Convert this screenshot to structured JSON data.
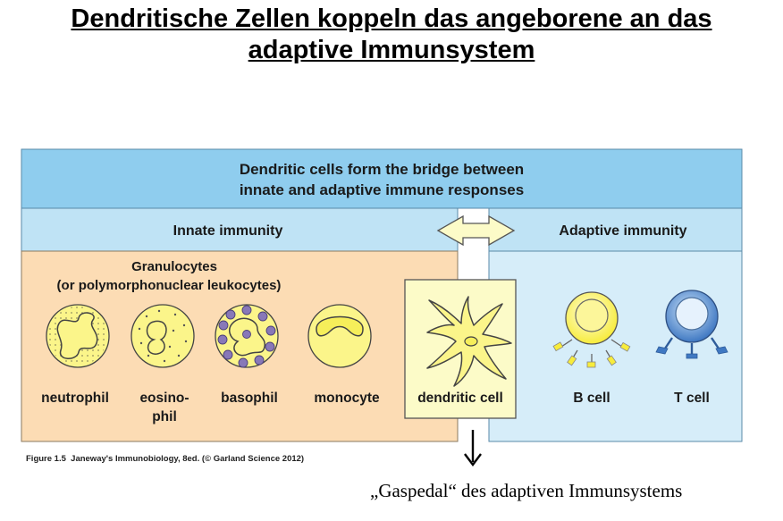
{
  "slide": {
    "title_line1": "Dendritische Zellen koppeln das angeborene an das",
    "title_line2": "adaptive Immunsystem"
  },
  "figure": {
    "header_line1": "Dendritic cells form the bridge between",
    "header_line2": "innate and adaptive immune responses",
    "innate_label": "Innate immunity",
    "adaptive_label": "Adaptive immunity",
    "granulocytes_line1": "Granulocytes",
    "granulocytes_line2": "(or polymorphonuclear leukocytes)",
    "cells": {
      "neutrophil": "neutrophil",
      "eosinophil_line1": "eosino-",
      "eosinophil_line2": "phil",
      "basophil": "basophil",
      "monocyte": "monocyte",
      "dendritic": "dendritic cell",
      "bcell": "B cell",
      "tcell": "T cell"
    },
    "colors": {
      "header_blue": "#8fcdee",
      "subheader_blue": "#bfe3f5",
      "innate_bg": "#fcdcb4",
      "adaptive_bg": "#d6edf9",
      "cell_yellow": "#fbf58a",
      "dc_box": "#fcfbc8",
      "granule_purple": "#8878b8",
      "tcell_blue": "#3f78c2"
    }
  },
  "caption": {
    "figure_ref": "Figure 1.5",
    "source": "Janeway's Immunobiology, 8ed. (© Garland Science 2012)"
  },
  "annotation": {
    "text": "„Gaspedal“ des adaptiven Immunsystems"
  }
}
